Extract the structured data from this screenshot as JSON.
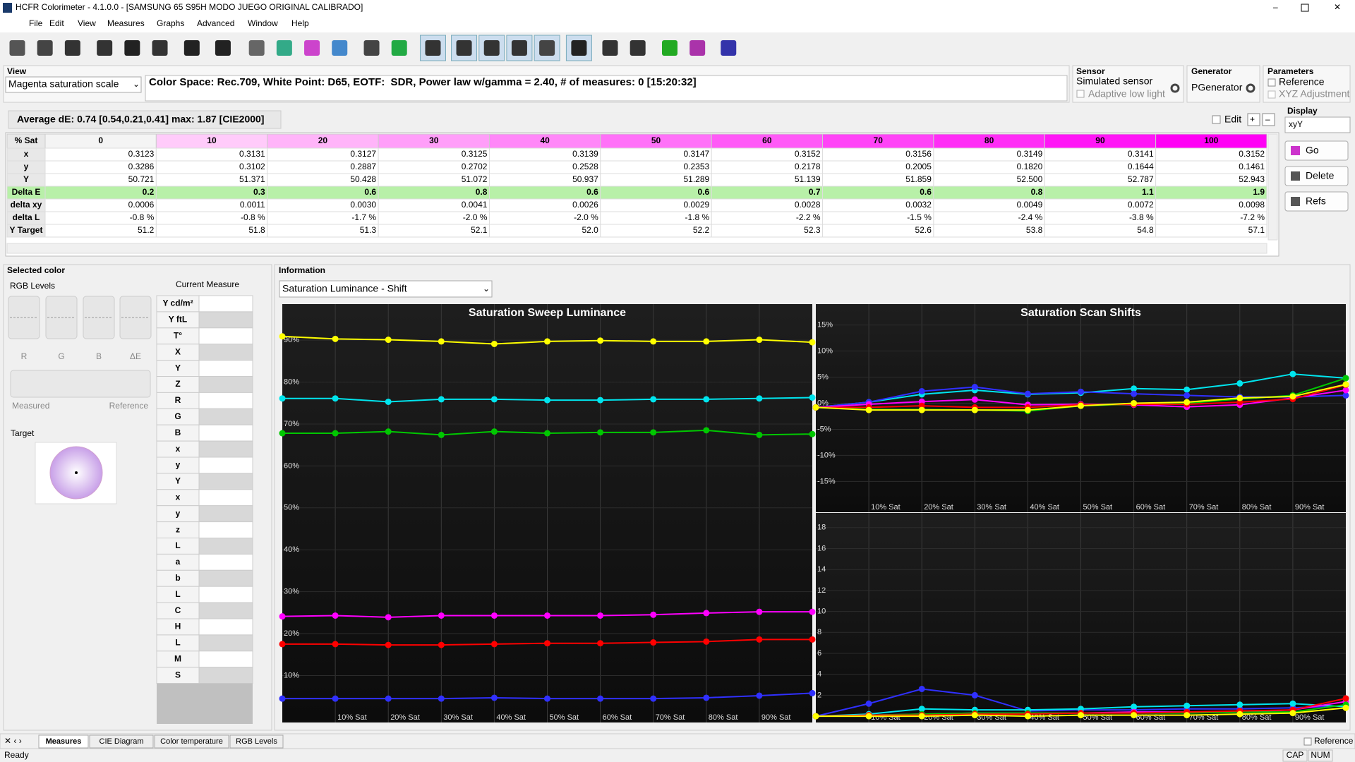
{
  "window": {
    "title": "HCFR Colorimeter - 4.1.0.0 - [SAMSUNG 65 S95H MODO JUEGO ORIGINAL CALIBRADO]"
  },
  "menu": [
    "File",
    "Edit",
    "View",
    "Measures",
    "Graphs",
    "Advanced",
    "Window",
    "Help"
  ],
  "view": {
    "label": "View",
    "selection": "Magenta saturation scale",
    "info": "Color Space: Rec.709, White Point: D65, EOTF:  SDR, Power law w/gamma = 2.40, # of measures: 0 [15:20:32]"
  },
  "sensor": {
    "label": "Sensor",
    "name": "Simulated sensor",
    "option": "Adaptive low light"
  },
  "generator": {
    "label": "Generator",
    "name": "PGenerator"
  },
  "parameters": {
    "label": "Parameters",
    "options": [
      "Reference",
      "XYZ Adjustment"
    ]
  },
  "summary": "Average dE: 0.74 [0.54,0.21,0.41] max: 1.87 [CIE2000]",
  "edit": "Edit",
  "display": {
    "label": "Display",
    "selection": "xyY"
  },
  "buttons": [
    "Go",
    "Delete",
    "Refs"
  ],
  "table": {
    "header": [
      "% Sat",
      "0",
      "10",
      "20",
      "30",
      "40",
      "50",
      "60",
      "70",
      "80",
      "90",
      "100"
    ],
    "rows": [
      [
        "x",
        "0.3123",
        "0.3131",
        "0.3127",
        "0.3125",
        "0.3139",
        "0.3147",
        "0.3152",
        "0.3156",
        "0.3149",
        "0.3141",
        "0.3152"
      ],
      [
        "y",
        "0.3286",
        "0.3102",
        "0.2887",
        "0.2702",
        "0.2528",
        "0.2353",
        "0.2178",
        "0.2005",
        "0.1820",
        "0.1644",
        "0.1461"
      ],
      [
        "Y",
        "50.721",
        "51.371",
        "50.428",
        "51.072",
        "50.937",
        "51.289",
        "51.139",
        "51.859",
        "52.500",
        "52.787",
        "52.943"
      ],
      [
        "Delta E",
        "0.2",
        "0.3",
        "0.6",
        "0.8",
        "0.6",
        "0.6",
        "0.7",
        "0.6",
        "0.8",
        "1.1",
        "1.9"
      ],
      [
        "delta xy",
        "0.0006",
        "0.0011",
        "0.0030",
        "0.0041",
        "0.0026",
        "0.0029",
        "0.0028",
        "0.0032",
        "0.0049",
        "0.0072",
        "0.0098"
      ],
      [
        "delta L",
        "-0.8 %",
        "-0.8 %",
        "-1.7 %",
        "-2.0 %",
        "-2.0 %",
        "-1.8 %",
        "-2.2 %",
        "-1.5 %",
        "-2.4 %",
        "-3.8 %",
        "-7.2 %"
      ],
      [
        "Y Target",
        "51.2",
        "51.8",
        "51.3",
        "52.1",
        "52.0",
        "52.2",
        "52.3",
        "52.6",
        "53.8",
        "54.8",
        "57.1"
      ]
    ]
  },
  "selected_color": {
    "title": "Selected color",
    "rgb_levels": "RGB Levels",
    "channels": [
      "R",
      "G",
      "B",
      "ΔE"
    ],
    "measured": "Measured",
    "reference": "Reference",
    "target": "Target",
    "current_measure": {
      "title": "Current Measure",
      "rows": [
        "Y cd/m²",
        "Y ftL",
        "T°",
        "X",
        "Y",
        "Z",
        "R",
        "G",
        "B",
        "x",
        "y",
        "Y",
        "x",
        "y",
        "z",
        "L",
        "a",
        "b",
        "L",
        "C",
        "H",
        "L",
        "M",
        "S"
      ]
    }
  },
  "information": {
    "title": "Information",
    "selection": "Saturation Luminance - Shift"
  },
  "chart_data": [
    {
      "type": "line",
      "title": "Saturation Sweep Luminance",
      "x": [
        0,
        10,
        20,
        30,
        40,
        50,
        60,
        70,
        80,
        90,
        100
      ],
      "xlim": [
        0,
        100
      ],
      "xticks": [
        {
          "value": 10,
          "label": "10% Sat"
        },
        {
          "value": 20,
          "label": "20% Sat"
        },
        {
          "value": 30,
          "label": "30% Sat"
        },
        {
          "value": 40,
          "label": "40% Sat"
        },
        {
          "value": 50,
          "label": "50% Sat"
        },
        {
          "value": 60,
          "label": "60% Sat"
        },
        {
          "value": 70,
          "label": "70% Sat"
        },
        {
          "value": 80,
          "label": "80% Sat"
        },
        {
          "value": 90,
          "label": "90% Sat"
        }
      ],
      "ylim": [
        -1.2,
        98.6
      ],
      "yticks": [
        {
          "value": 10,
          "label": "10%"
        },
        {
          "value": 20,
          "label": "20%"
        },
        {
          "value": 30,
          "label": "30%"
        },
        {
          "value": 40,
          "label": "40%"
        },
        {
          "value": 50,
          "label": "50%"
        },
        {
          "value": 60,
          "label": "60%"
        },
        {
          "value": 70,
          "label": "70%"
        },
        {
          "value": 80,
          "label": "80%"
        },
        {
          "value": 90,
          "label": "90%"
        }
      ],
      "series": [
        {
          "color": "#ffff00",
          "values": [
            90.9,
            90.3,
            90.1,
            89.7,
            89.1,
            89.7,
            89.9,
            89.7,
            89.7,
            90.1,
            89.5
          ]
        },
        {
          "color": "#00e5ee",
          "values": [
            76.1,
            76.1,
            75.3,
            75.9,
            75.9,
            75.7,
            75.7,
            75.9,
            75.9,
            76.1,
            76.3
          ]
        },
        {
          "color": "#00c800",
          "values": [
            67.8,
            67.8,
            68.2,
            67.4,
            68.2,
            67.8,
            68.0,
            68.0,
            68.5,
            67.4,
            67.6
          ]
        },
        {
          "color": "#ff00ff",
          "values": [
            24.1,
            24.3,
            23.9,
            24.3,
            24.3,
            24.3,
            24.3,
            24.5,
            24.9,
            25.2,
            25.2
          ]
        },
        {
          "color": "#ff0000",
          "values": [
            17.5,
            17.5,
            17.3,
            17.3,
            17.5,
            17.7,
            17.7,
            17.9,
            18.1,
            18.6,
            18.6
          ]
        },
        {
          "color": "#3030ff",
          "values": [
            4.5,
            4.5,
            4.5,
            4.5,
            4.7,
            4.5,
            4.5,
            4.5,
            4.7,
            5.2,
            5.8
          ]
        }
      ]
    },
    {
      "type": "line",
      "title": "Saturation Scan Shifts",
      "x": [
        0,
        10,
        20,
        30,
        40,
        50,
        60,
        70,
        80,
        90,
        100
      ],
      "xlim": [
        0,
        100
      ],
      "xticks": [
        {
          "value": 10,
          "label": "10% Sat"
        },
        {
          "value": 20,
          "label": "20% Sat"
        },
        {
          "value": 30,
          "label": "30% Sat"
        },
        {
          "value": 40,
          "label": "40% Sat"
        },
        {
          "value": 50,
          "label": "50% Sat"
        },
        {
          "value": 60,
          "label": "60% Sat"
        },
        {
          "value": 70,
          "label": "70% Sat"
        },
        {
          "value": 80,
          "label": "80% Sat"
        },
        {
          "value": 90,
          "label": "90% Sat"
        }
      ],
      "ylim": [
        -20.9,
        19
      ],
      "yticks": [
        {
          "value": -15,
          "label": "-15%"
        },
        {
          "value": -10,
          "label": "-10%"
        },
        {
          "value": -5,
          "label": "-5%"
        },
        {
          "value": 0,
          "label": "0%"
        },
        {
          "value": 5,
          "label": "5%"
        },
        {
          "value": 10,
          "label": "10%"
        },
        {
          "value": 15,
          "label": "15%"
        }
      ],
      "series": [
        {
          "color": "#00e5ee",
          "values": [
            -0.8,
            0.2,
            1.7,
            2.5,
            1.7,
            2.0,
            2.8,
            2.6,
            3.8,
            5.6,
            4.8
          ]
        },
        {
          "color": "#3030ff",
          "values": [
            -0.8,
            0.2,
            2.3,
            3.1,
            1.8,
            2.2,
            1.8,
            1.5,
            1.2,
            1.2,
            1.5
          ]
        },
        {
          "color": "#ff00ff",
          "values": [
            -0.8,
            -0.2,
            0.3,
            0.7,
            -0.3,
            -0.2,
            -0.3,
            -0.7,
            -0.3,
            1.0,
            2.5
          ]
        },
        {
          "color": "#00c800",
          "values": [
            -0.8,
            -1.2,
            -1.2,
            -1.3,
            -1.5,
            -0.5,
            -0.2,
            0,
            0.8,
            1.5,
            4.8
          ]
        },
        {
          "color": "#ff0000",
          "values": [
            -0.8,
            -0.8,
            -0.5,
            -0.8,
            -0.8,
            -0.3,
            -0.2,
            -0.2,
            0.2,
            0.8,
            3.5
          ]
        },
        {
          "color": "#ffff00",
          "values": [
            -0.8,
            -1.3,
            -1.3,
            -1.3,
            -1.3,
            -0.5,
            0,
            0.2,
            1.0,
            1.3,
            3.6
          ]
        }
      ]
    },
    {
      "type": "line",
      "x": [
        0,
        10,
        20,
        30,
        40,
        50,
        60,
        70,
        80,
        90,
        100
      ],
      "xlim": [
        0,
        100
      ],
      "xticks": [
        {
          "value": 10,
          "label": "10% Sat"
        },
        {
          "value": 20,
          "label": "20% Sat"
        },
        {
          "value": 30,
          "label": "30% Sat"
        },
        {
          "value": 40,
          "label": "40% Sat"
        },
        {
          "value": 50,
          "label": "50% Sat"
        },
        {
          "value": 60,
          "label": "60% Sat"
        },
        {
          "value": 70,
          "label": "70% Sat"
        },
        {
          "value": 80,
          "label": "80% Sat"
        },
        {
          "value": 90,
          "label": "90% Sat"
        }
      ],
      "ylim": [
        -0.6,
        19.4
      ],
      "yticks": [
        2,
        4,
        6,
        8,
        10,
        12,
        14,
        16,
        18
      ],
      "series": [
        {
          "color": "#3030ff",
          "values": [
            0,
            1.2,
            2.6,
            2.0,
            0.5,
            0.6,
            0.6,
            0.7,
            0.7,
            0.8,
            1.0
          ]
        },
        {
          "color": "#00e5ee",
          "values": [
            0,
            0.2,
            0.7,
            0.6,
            0.6,
            0.7,
            0.9,
            1.0,
            1.1,
            1.2,
            0.9
          ]
        },
        {
          "color": "#ff00ff",
          "values": [
            0,
            0.1,
            0.2,
            0.3,
            0.3,
            0.3,
            0.4,
            0.4,
            0.4,
            0.6,
            1.4
          ]
        },
        {
          "color": "#00c800",
          "values": [
            0,
            0.1,
            0.2,
            0.3,
            0.3,
            0.3,
            0.3,
            0.3,
            0.4,
            0.4,
            1.1
          ]
        },
        {
          "color": "#ff0000",
          "values": [
            0,
            0.1,
            0.1,
            0.2,
            0.2,
            0.3,
            0.3,
            0.4,
            0.5,
            0.6,
            1.7
          ]
        },
        {
          "color": "#ffff00",
          "values": [
            0,
            0,
            0,
            0.1,
            0,
            0.1,
            0.1,
            0.1,
            0.2,
            0.3,
            0.8
          ]
        }
      ]
    }
  ],
  "tabs": [
    "Measures",
    "CIE Diagram",
    "Color temperature",
    "RGB Levels"
  ],
  "status": {
    "text": "Ready",
    "reference": "Reference",
    "indicators": [
      "CAP",
      "NUM"
    ]
  }
}
